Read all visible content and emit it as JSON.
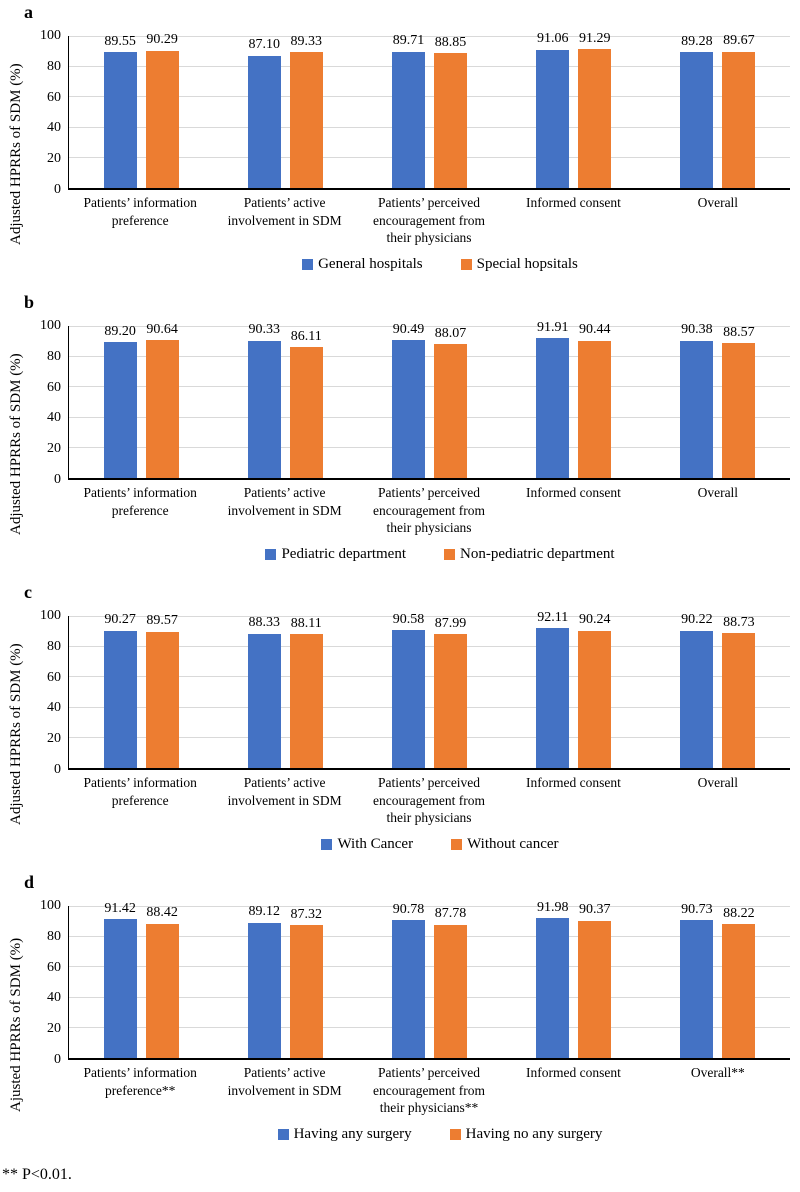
{
  "figure": {
    "footnote": "** P<0.01.",
    "colors": {
      "series1_blue": "#4472C4",
      "series2_orange": "#ED7D31",
      "gridline": "#D9D9D9",
      "axis": "#000000"
    }
  },
  "chart_data": [
    {
      "type": "bar",
      "panel": "a",
      "ylabel": "Adjusted HPRRs of SDM (%)",
      "ylim": [
        0,
        100
      ],
      "yticks": [
        0,
        20,
        40,
        60,
        80,
        100
      ],
      "grid": true,
      "legend_position": "bottom",
      "categories": [
        "Patients’ information preference",
        "Patients’ active involvement in SDM",
        "Patients’ perceived encouragement from their physicians",
        "Informed consent",
        "Overall"
      ],
      "series": [
        {
          "name": "General hospitals",
          "color": "#4472C4",
          "values": [
            89.55,
            87.1,
            89.71,
            91.06,
            89.28
          ]
        },
        {
          "name": "Special hopsitals",
          "color": "#ED7D31",
          "values": [
            90.29,
            89.33,
            88.85,
            91.29,
            89.67
          ]
        }
      ]
    },
    {
      "type": "bar",
      "panel": "b",
      "ylabel": "Adjusted HPRRs of SDM (%)",
      "ylim": [
        0,
        100
      ],
      "yticks": [
        0,
        20,
        40,
        60,
        80,
        100
      ],
      "grid": true,
      "legend_position": "bottom",
      "categories": [
        "Patients’ information preference",
        "Patients’ active involvement in SDM",
        "Patients’ perceived encouragement from their physicians",
        "Informed consent",
        "Overall"
      ],
      "series": [
        {
          "name": "Pediatric department",
          "color": "#4472C4",
          "values": [
            89.2,
            90.33,
            90.49,
            91.91,
            90.38
          ]
        },
        {
          "name": "Non-pediatric department",
          "color": "#ED7D31",
          "values": [
            90.64,
            86.11,
            88.07,
            90.44,
            88.57
          ]
        }
      ]
    },
    {
      "type": "bar",
      "panel": "c",
      "ylabel": "Adjusted HPRRs of SDM (%)",
      "ylim": [
        0,
        100
      ],
      "yticks": [
        0,
        20,
        40,
        60,
        80,
        100
      ],
      "grid": true,
      "legend_position": "bottom",
      "categories": [
        "Patients’ information preference",
        "Patients’ active involvement in SDM",
        "Patients’ perceived encouragement from their physicians",
        "Informed consent",
        "Overall"
      ],
      "series": [
        {
          "name": "With Cancer",
          "color": "#4472C4",
          "values": [
            90.27,
            88.33,
            90.58,
            92.11,
            90.22
          ]
        },
        {
          "name": "Without cancer",
          "color": "#ED7D31",
          "values": [
            89.57,
            88.11,
            87.99,
            90.24,
            88.73
          ]
        }
      ]
    },
    {
      "type": "bar",
      "panel": "d",
      "ylabel": "Ajusted HPRRs of SDM (%)",
      "ylim": [
        0,
        100
      ],
      "yticks": [
        0,
        20,
        40,
        60,
        80,
        100
      ],
      "grid": true,
      "legend_position": "bottom",
      "categories": [
        "Patients’ information preference**",
        "Patients’ active involvement in SDM",
        "Patients’ perceived encouragement from their physicians**",
        "Informed consent",
        "Overall**"
      ],
      "series": [
        {
          "name": "Having any surgery",
          "color": "#4472C4",
          "values": [
            91.42,
            89.12,
            90.78,
            91.98,
            90.73
          ]
        },
        {
          "name": "Having no any surgery",
          "color": "#ED7D31",
          "values": [
            88.42,
            87.32,
            87.78,
            90.37,
            88.22
          ]
        }
      ]
    }
  ]
}
